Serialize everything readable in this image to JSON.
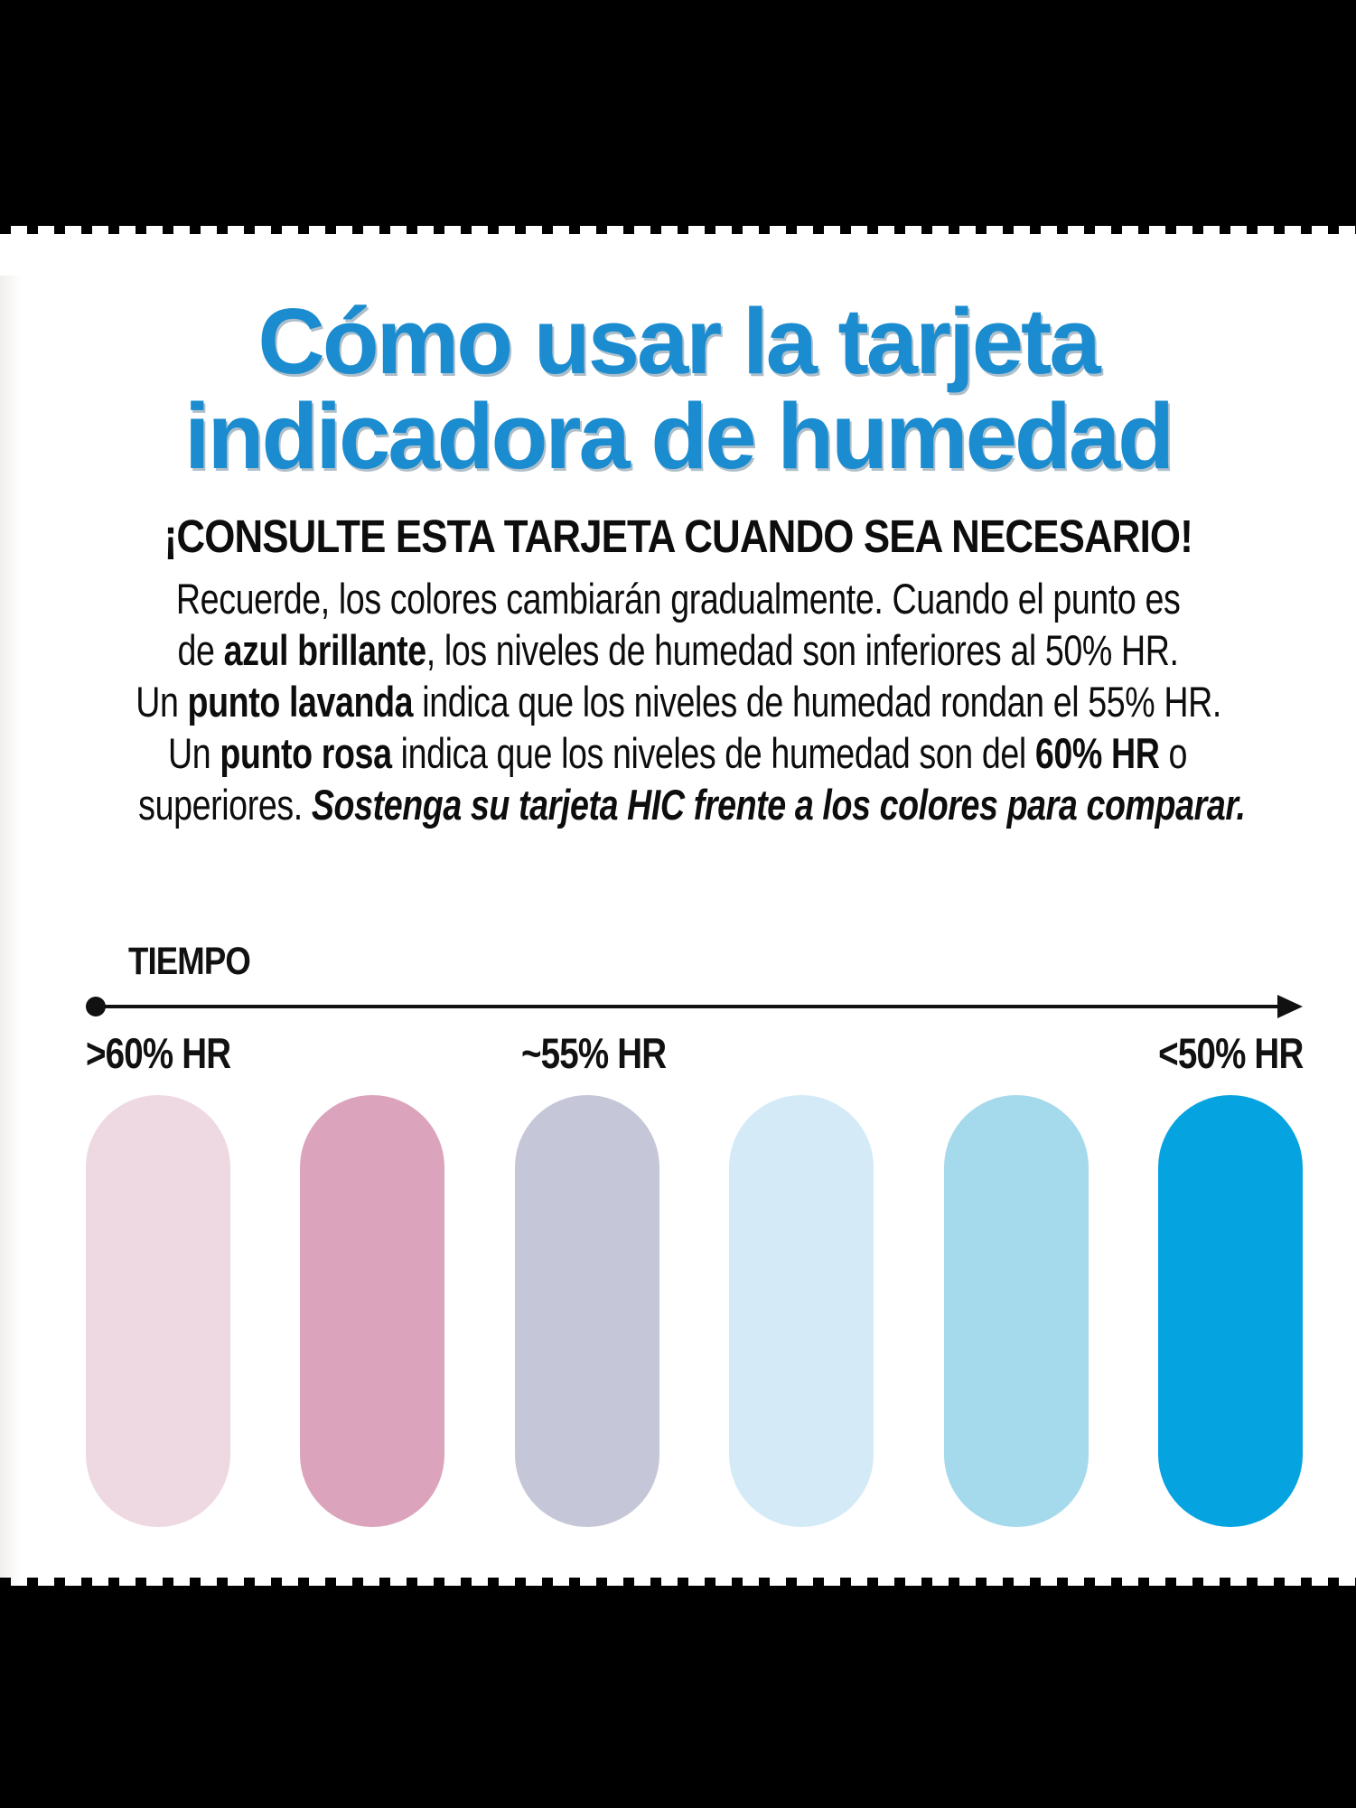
{
  "frame": {
    "bar_color": "#000000",
    "panel_color": "#ffffff"
  },
  "title": {
    "line1": "Cómo usar la tarjeta",
    "line2": "indicadora de humedad",
    "color": "#1b8ccf"
  },
  "subtitle": {
    "text": "¡CONSULTE ESTA TARJETA CUANDO SEA NECESARIO!",
    "color": "#0d0d0d"
  },
  "paragraph": {
    "lines": [
      [
        {
          "t": "Recuerde, los colores cambiarán gradualmente. Cuando el punto es"
        }
      ],
      [
        {
          "t": "de "
        },
        {
          "t": "azul brillante",
          "b": true
        },
        {
          "t": ", los niveles de humedad son inferiores al 50% HR."
        }
      ],
      [
        {
          "t": "Un "
        },
        {
          "t": "punto lavanda",
          "b": true
        },
        {
          "t": " indica que los niveles de humedad rondan el 55% HR."
        }
      ],
      [
        {
          "t": "Un "
        },
        {
          "t": "punto rosa",
          "b": true
        },
        {
          "t": " indica que los niveles de humedad son del "
        },
        {
          "t": "60% HR",
          "b": true
        },
        {
          "t": " o"
        }
      ],
      [
        {
          "t": "superiores. "
        },
        {
          "t": "Sostenga su tarjeta HIC frente a los colores para comparar.",
          "b": true,
          "i": true
        }
      ]
    ]
  },
  "timeline": {
    "label": "TIEMPO",
    "axis_color": "#111111",
    "ticks": [
      ">60% HR",
      "~55% HR",
      "<50% HR"
    ]
  },
  "swatches": [
    {
      "name": "rosa-claro",
      "color": "#eed8e2",
      "meaning": ">60% HR"
    },
    {
      "name": "rosa",
      "color": "#dba4bc",
      "meaning": ">60% HR"
    },
    {
      "name": "lavanda",
      "color": "#c5c6d8",
      "meaning": "~55% HR"
    },
    {
      "name": "azul-palido",
      "color": "#d4eaf7",
      "meaning": "~55% HR"
    },
    {
      "name": "azul-claro",
      "color": "#a5d9ec",
      "meaning": "<50% HR"
    },
    {
      "name": "azul-brillante",
      "color": "#06a3e1",
      "meaning": "<50% HR"
    }
  ]
}
